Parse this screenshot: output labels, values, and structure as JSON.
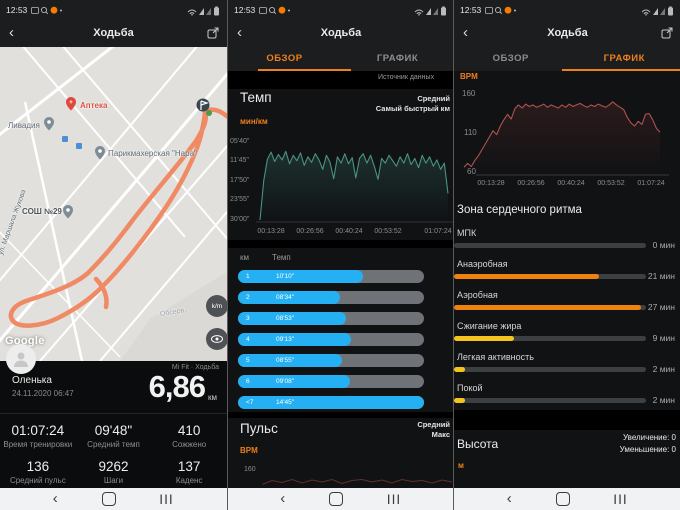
{
  "status": {
    "time": "12:53"
  },
  "header": {
    "title": "Ходьба"
  },
  "tabs": {
    "overview": "ОБЗОР",
    "graph": "ГРАФИК"
  },
  "colors": {
    "accent": "#ee7f1d",
    "split_blue": "#25b0f4",
    "pace_line": "#4a9283",
    "bpm_line": "#b05150",
    "zone_orange": "#ee820e",
    "zone_yellow": "#f4c41d"
  },
  "left": {
    "map": {
      "watermark": "Mi Fit · Ходьба",
      "google": "Google",
      "units_control": "k/m",
      "labels": {
        "pharmacy": "Аптека",
        "livadia": "Ливадия",
        "hairdresser": "Парикмахерская \"Нара\"",
        "school": "СОШ №29",
        "street_left": "ул. Маршала Жукова",
        "street_right": "Обсерв."
      }
    },
    "summary": {
      "user": "Оленька",
      "datetime": "24.11.2020 06:47",
      "distance": "6,86",
      "distance_unit": "км"
    },
    "stats": [
      {
        "value": "01:07:24",
        "label": "Время тренировки"
      },
      {
        "value": "09'48\"",
        "label": "Средний темп"
      },
      {
        "value": "410",
        "label": "Сожжено"
      },
      {
        "value": "136",
        "label": "Средний пульс"
      },
      {
        "value": "9262",
        "label": "Шаги"
      },
      {
        "value": "137",
        "label": "Каденс"
      }
    ]
  },
  "middle": {
    "source_link": "Источник данных",
    "pace": {
      "title": "Темп",
      "legend_line1": "Средний",
      "legend_line2": "Самый быстрый км",
      "unit": "мин/км",
      "y_ticks": [
        "05'40\"",
        "11'45\"",
        "17'50\"",
        "23'55\"",
        "30'00\""
      ],
      "x_ticks": [
        "00:13:28",
        "00:26:56",
        "00:40:24",
        "00:53:52",
        "01:07:24"
      ],
      "points": [
        1.0,
        0.5,
        0.22,
        0.13,
        0.25,
        0.16,
        0.23,
        0.12,
        0.28,
        0.17,
        0.24,
        0.14,
        0.3,
        0.19,
        0.26,
        0.15,
        0.23,
        0.35,
        0.17,
        0.26,
        0.47,
        0.19,
        0.27,
        0.15,
        0.28,
        0.2,
        0.46,
        0.21,
        0.15,
        0.27,
        0.17,
        0.31,
        0.48,
        0.21,
        0.27,
        0.17,
        0.24,
        0.31,
        0.19,
        0.27,
        0.15,
        0.29,
        0.21,
        0.33,
        0.17,
        0.27,
        0.19,
        0.31,
        0.23,
        0.35,
        0.27,
        0.66
      ]
    },
    "splits": {
      "col_km": "км",
      "col_pace": "Темп",
      "rows": [
        {
          "km": "1",
          "pace": "10'10\"",
          "fill": 0.67
        },
        {
          "km": "2",
          "pace": "08'34\"",
          "fill": 0.55
        },
        {
          "km": "3",
          "pace": "08'53\"",
          "fill": 0.58
        },
        {
          "km": "4",
          "pace": "09'13\"",
          "fill": 0.61
        },
        {
          "km": "5",
          "pace": "08'55\"",
          "fill": 0.56
        },
        {
          "km": "6",
          "pace": "09'08\"",
          "fill": 0.6
        },
        {
          "km": "<7",
          "pace": "14'45\"",
          "fill": 1.0
        }
      ]
    },
    "pulse": {
      "title": "Пульс",
      "legend_line1": "Средний",
      "legend_line2": "Макс",
      "unit": "BPM",
      "first_tick": "160",
      "spark": [
        0.85,
        0.45,
        0.65,
        0.35,
        0.7,
        0.4,
        0.6,
        0.35,
        0.75,
        0.45,
        0.35,
        0.6,
        0.4,
        0.7,
        0.35,
        0.55,
        0.45,
        0.7,
        0.4,
        0.6
      ]
    }
  },
  "right": {
    "bpm_chart": {
      "unit": "BPM",
      "y_ticks": [
        "160",
        "110",
        "60"
      ],
      "x_ticks": [
        "00:13:28",
        "00:26:56",
        "00:40:24",
        "00:53:52",
        "01:07:24"
      ],
      "points": [
        66,
        71,
        67,
        75,
        81,
        89,
        97,
        105,
        113,
        108,
        119,
        127,
        134,
        128,
        141,
        146,
        142,
        147,
        144,
        146,
        143,
        145,
        147,
        143,
        146,
        144,
        142,
        146,
        143,
        147,
        144,
        146,
        148,
        145,
        143,
        146,
        144,
        147,
        145,
        143,
        146,
        150,
        146,
        143,
        140,
        130,
        123,
        119,
        125,
        121,
        134,
        135,
        127,
        116,
        111
      ]
    },
    "zones": {
      "title": "Зона сердечного ритма",
      "items": [
        {
          "label": "МПК",
          "value": "0 мин",
          "fill": 0,
          "color": "#4a4d50"
        },
        {
          "label": "Анаэробная",
          "value": "21 мин",
          "fill": 0.755,
          "color": "#ee820e"
        },
        {
          "label": "Аэробная",
          "value": "27 мин",
          "fill": 0.975,
          "color": "#ee820e"
        },
        {
          "label": "Сжигание жира",
          "value": "9 мин",
          "fill": 0.315,
          "color": "#f4c41d"
        },
        {
          "label": "Легкая активность",
          "value": "2 мин",
          "fill": 0.055,
          "color": "#f4c41d"
        },
        {
          "label": "Покой",
          "value": "2 мин",
          "fill": 0.055,
          "color": "#f4c41d"
        }
      ]
    },
    "altitude": {
      "title": "Высота",
      "inc": "Увеличение: 0",
      "dec": "Уменьшение: 0",
      "unit": "м"
    }
  }
}
